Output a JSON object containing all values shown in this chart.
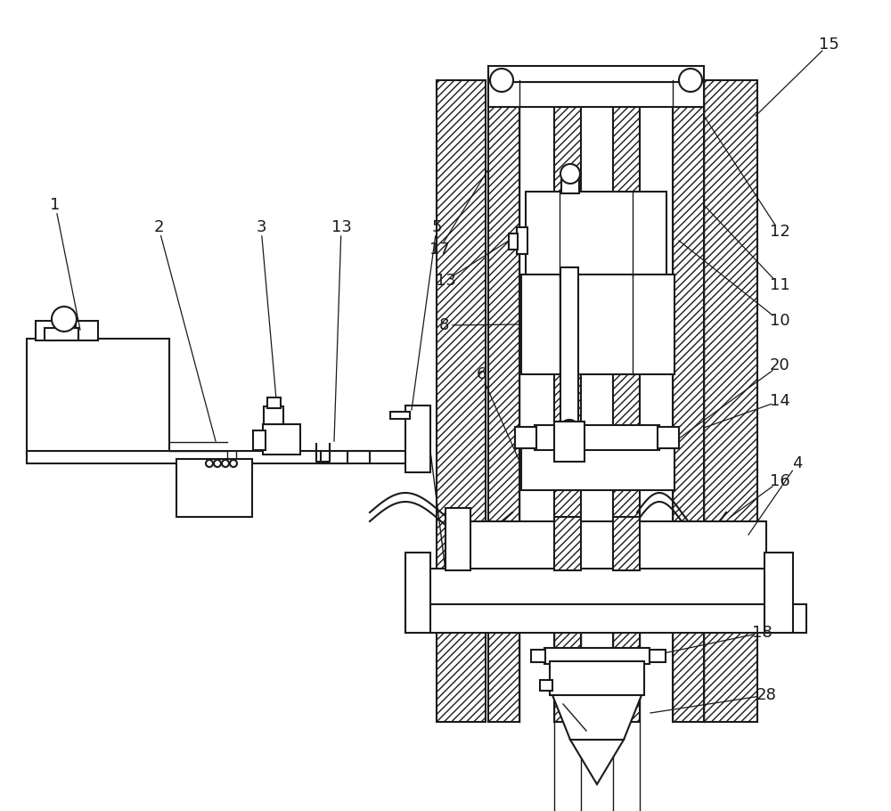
{
  "bg": "#ffffff",
  "lc": "#1a1a1a",
  "lw": 1.5,
  "lw_thin": 1.0,
  "lw_ann": 0.9,
  "fs": 13
}
